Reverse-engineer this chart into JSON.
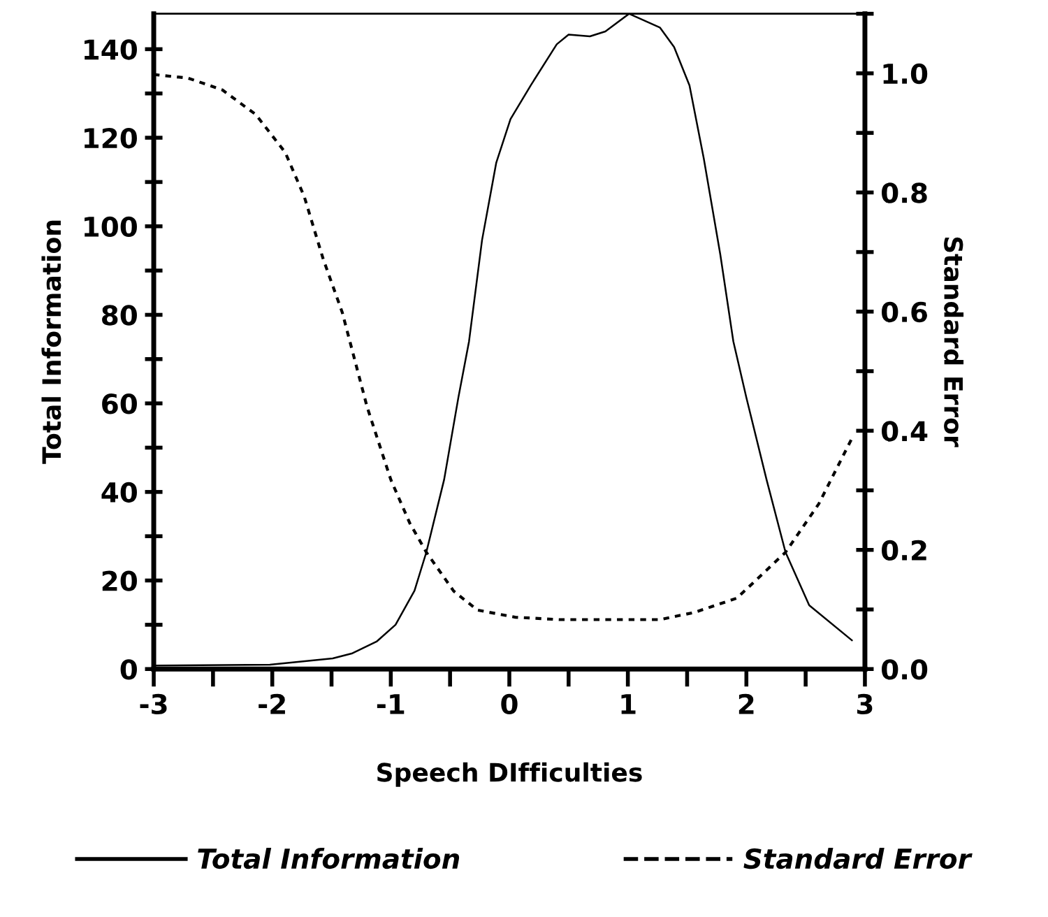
{
  "chart_data": {
    "type": "line",
    "xlabel": "Speech DIfficulties",
    "ylabel": "Total Information",
    "y2label": "Standard Error",
    "series": [
      {
        "name": "Total Information",
        "color": "#000000",
        "line_style": "solid",
        "x": [
          -3,
          -2.02,
          -1.49,
          -1.33,
          -1.12,
          -0.96,
          -0.8,
          -0.7,
          -0.55,
          -0.43,
          -0.34,
          -0.23,
          -0.11,
          0.01,
          0.18,
          0.4,
          0.5,
          0.68,
          0.81,
          1.01,
          1.27,
          1.39,
          1.52,
          1.64,
          1.78,
          1.89,
          2.0,
          2.17,
          2.33,
          2.53,
          2.89
        ],
        "values": [
          0.8,
          1.0,
          2.4,
          3.5,
          6.2,
          10,
          17.7,
          26.4,
          42.8,
          61.3,
          74,
          96.9,
          114.4,
          124.2,
          131.8,
          141.1,
          143.3,
          142.9,
          144,
          148,
          144.9,
          140.5,
          131.8,
          115.4,
          93.6,
          74,
          61.3,
          42.8,
          26.4,
          14.4,
          6.5
        ]
      },
      {
        "name": "Standard Error",
        "color": "#000000",
        "line_style": "dotted",
        "axis": "y2",
        "x": [
          -3,
          -2.71,
          -2.42,
          -2.14,
          -1.89,
          -1.73,
          -1.57,
          -1.41,
          -1.2,
          -1.0,
          -0.84,
          -0.7,
          -0.47,
          -0.27,
          0.05,
          0.42,
          0.83,
          1.27,
          1.56,
          1.92,
          2.33,
          2.61,
          2.9
        ],
        "values": [
          0.998,
          0.992,
          0.972,
          0.931,
          0.867,
          0.793,
          0.688,
          0.599,
          0.44,
          0.318,
          0.245,
          0.196,
          0.131,
          0.099,
          0.087,
          0.083,
          0.083,
          0.083,
          0.095,
          0.119,
          0.196,
          0.277,
          0.391
        ]
      }
    ],
    "xlim": [
      -3,
      3
    ],
    "xticks": [
      -3,
      {
        "value": -2.5,
        "label": null
      },
      -2,
      {
        "value": -1.5,
        "label": null
      },
      -1,
      {
        "value": -0.5,
        "label": null
      },
      0,
      {
        "value": 0.5,
        "label": null
      },
      1,
      {
        "value": 1.5,
        "label": null
      },
      2,
      {
        "value": 2.5,
        "label": null
      },
      3
    ],
    "ylim": [
      0,
      148
    ],
    "yticks": [
      0,
      {
        "value": 10,
        "label": null
      },
      20,
      {
        "value": 30,
        "label": null
      },
      40,
      {
        "value": 50,
        "label": null
      },
      60,
      {
        "value": 70,
        "label": null
      },
      80,
      {
        "value": 90,
        "label": null
      },
      100,
      {
        "value": 110,
        "label": null
      },
      120,
      {
        "value": 130,
        "label": null
      },
      140
    ],
    "y2lim": [
      0,
      1.1
    ],
    "y2ticks": [
      {
        "value": 0,
        "label": "0.0"
      },
      {
        "value": 0.1,
        "label": null
      },
      0.2,
      {
        "value": 0.3,
        "label": null
      },
      0.4,
      {
        "value": 0.5,
        "label": null
      },
      0.6,
      {
        "value": 0.7,
        "label": null
      },
      0.8,
      {
        "value": 0.9,
        "label": null
      },
      {
        "value": 1.0,
        "label": "1.0"
      },
      {
        "value": 1.1,
        "label": null
      }
    ],
    "legend": "bottom",
    "grid": false
  }
}
